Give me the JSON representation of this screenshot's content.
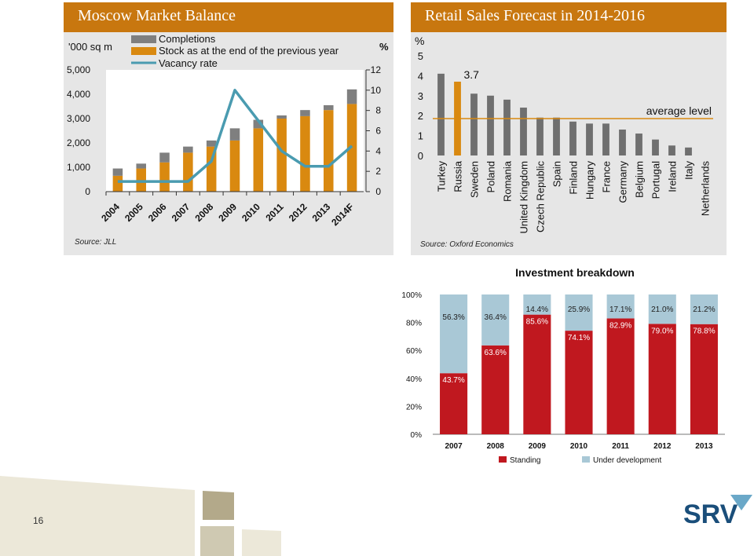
{
  "page_number": "16",
  "logo_text": "SRV",
  "colors": {
    "panel_header": "#c8770f",
    "completions": "#7f7f7f",
    "stock": "#d98910",
    "vacancy": "#4a9bb0",
    "retail_bar": "#6f6f6f",
    "russia_bar": "#d98910",
    "standing": "#c0181f",
    "under_development": "#a9c8d6"
  },
  "chart_data": [
    {
      "type": "bar",
      "title": "Moscow Market Balance",
      "ylabel": "'000 sq m",
      "y2label": "%",
      "source": "Source: JLL",
      "categories": [
        "2004",
        "2005",
        "2006",
        "2007",
        "2008",
        "2009",
        "2010",
        "2011",
        "2012",
        "2013",
        "2014F"
      ],
      "ylim": [
        0,
        5000
      ],
      "y_ticks": [
        "0",
        "1,000",
        "2,000",
        "3,000",
        "4,000",
        "5,000"
      ],
      "y2lim": [
        0,
        12
      ],
      "y2_ticks": [
        "0",
        "2",
        "4",
        "6",
        "8",
        "10",
        "12"
      ],
      "series": [
        {
          "name": "Completions",
          "kind": "bar",
          "values": [
            300,
            200,
            400,
            250,
            250,
            500,
            350,
            130,
            250,
            200,
            600
          ]
        },
        {
          "name": "Stock as at the end of the previous year",
          "kind": "bar",
          "values": [
            650,
            950,
            1200,
            1600,
            1850,
            2100,
            2600,
            3000,
            3100,
            3350,
            3600
          ]
        },
        {
          "name": "Vacancy rate",
          "kind": "line",
          "axis": "right",
          "values": [
            1,
            1,
            1,
            1,
            3,
            10,
            7,
            4,
            2.5,
            2.5,
            4.5
          ]
        }
      ]
    },
    {
      "type": "bar",
      "title": "Retail Sales Forecast in 2014-2016",
      "ylabel": "%",
      "source": "Source: Oxford Economics",
      "annotation": "average level",
      "average_level": 1.85,
      "highlight_label": "3.7",
      "ylim": [
        0,
        5
      ],
      "y_ticks": [
        "0",
        "1",
        "2",
        "3",
        "4",
        "5"
      ],
      "categories": [
        "Turkey",
        "Russia",
        "Sweden",
        "Poland",
        "Romania",
        "United Kingdom",
        "Czech Republic",
        "Spain",
        "Finland",
        "Hungary",
        "France",
        "Germany",
        "Belgium",
        "Portugal",
        "Ireland",
        "Italy",
        "Netherlands"
      ],
      "values": [
        4.1,
        3.7,
        3.1,
        3.0,
        2.8,
        2.4,
        1.9,
        1.9,
        1.7,
        1.6,
        1.6,
        1.3,
        1.1,
        0.8,
        0.5,
        0.4,
        0.0
      ]
    },
    {
      "type": "bar",
      "title": "Investment breakdown",
      "categories": [
        "2007",
        "2008",
        "2009",
        "2010",
        "2011",
        "2012",
        "2013"
      ],
      "ylim": [
        0,
        100
      ],
      "y_ticks": [
        "0%",
        "20%",
        "40%",
        "60%",
        "80%",
        "100%"
      ],
      "series": [
        {
          "name": "Standing",
          "values": [
            43.7,
            63.6,
            85.6,
            74.1,
            82.9,
            79.0,
            78.8
          ],
          "labels": [
            "43.7%",
            "63.6%",
            "85.6%",
            "74.1%",
            "82.9%",
            "79.0%",
            "78.8%"
          ]
        },
        {
          "name": "Under development",
          "values": [
            56.3,
            36.4,
            14.4,
            25.9,
            17.1,
            21.0,
            21.2
          ],
          "labels": [
            "56.3%",
            "36.4%",
            "14.4%",
            "25.9%",
            "17.1%",
            "21.0%",
            "21.2%"
          ]
        }
      ]
    }
  ]
}
